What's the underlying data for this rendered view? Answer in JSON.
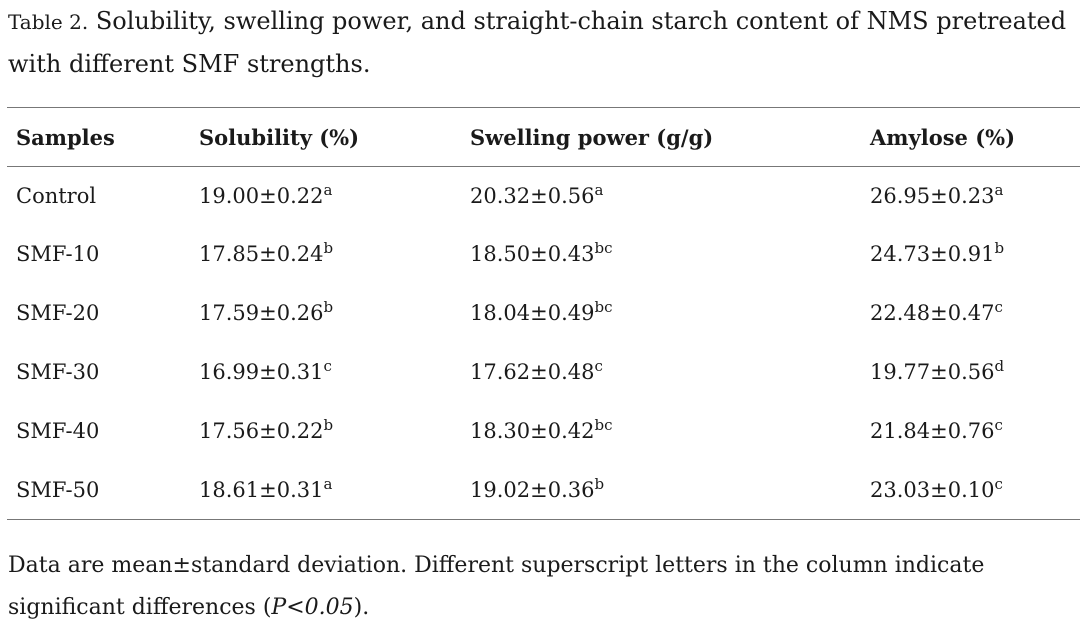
{
  "caption": {
    "label": "Table 2.",
    "text": "Solubility, swelling power, and straight-chain starch content of NMS pretreated with different SMF strengths."
  },
  "table": {
    "headers": [
      "Samples",
      "Solubility (%)",
      "Swelling power (g/g)",
      "Amylose (%)"
    ],
    "rows": [
      {
        "sample": "Control",
        "solubility": {
          "value": "19.00±0.22",
          "sup": "a"
        },
        "swelling": {
          "value": "20.32±0.56",
          "sup": "a"
        },
        "amylose": {
          "value": "26.95±0.23",
          "sup": "a"
        }
      },
      {
        "sample": "SMF-10",
        "solubility": {
          "value": "17.85±0.24",
          "sup": "b"
        },
        "swelling": {
          "value": "18.50±0.43",
          "sup": "bc"
        },
        "amylose": {
          "value": "24.73±0.91",
          "sup": "b"
        }
      },
      {
        "sample": "SMF-20",
        "solubility": {
          "value": "17.59±0.26",
          "sup": "b"
        },
        "swelling": {
          "value": "18.04±0.49",
          "sup": "bc"
        },
        "amylose": {
          "value": "22.48±0.47",
          "sup": "c"
        }
      },
      {
        "sample": "SMF-30",
        "solubility": {
          "value": "16.99±0.31",
          "sup": "c"
        },
        "swelling": {
          "value": "17.62±0.48",
          "sup": "c"
        },
        "amylose": {
          "value": "19.77±0.56",
          "sup": "d"
        }
      },
      {
        "sample": "SMF-40",
        "solubility": {
          "value": "17.56±0.22",
          "sup": "b"
        },
        "swelling": {
          "value": "18.30±0.42",
          "sup": "bc"
        },
        "amylose": {
          "value": "21.84±0.76",
          "sup": "c"
        }
      },
      {
        "sample": "SMF-50",
        "solubility": {
          "value": "18.61±0.31",
          "sup": "a"
        },
        "swelling": {
          "value": "19.02±0.36",
          "sup": "b"
        },
        "amylose": {
          "value": "23.03±0.10",
          "sup": "c"
        }
      }
    ]
  },
  "footnote": {
    "text": "Data are mean±standard deviation. Different superscript letters in the column indicate significant differences (",
    "p_value": "P<0.05",
    "close": ")."
  }
}
